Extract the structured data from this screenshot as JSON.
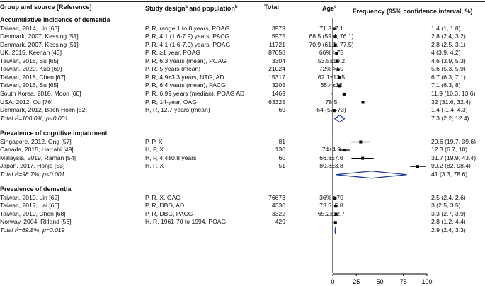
{
  "headers": {
    "group": "Group and source [Reference]",
    "design": "Study design",
    "design_sup": "a",
    "design_and": " and population",
    "design_sup2": "b",
    "total": "Total",
    "age": "Age",
    "age_sup": "c",
    "freq": "Frequency (95% confidence interval, %)"
  },
  "chart_data": {
    "type": "forest",
    "xlim": [
      0,
      100
    ],
    "xticks": [
      0,
      25,
      50,
      75,
      100
    ],
    "sections": [
      {
        "title": "Accumulative incidence of dementia",
        "rows": [
          {
            "source": "Taiwan, 2014, Lin [63]",
            "design": "P, R, range 1 to 8 years, POAG",
            "total": "3979",
            "age": "71.3±7.1",
            "est": 1.4,
            "lo": 1,
            "hi": 1.8,
            "label": "1.4 (1, 1.8)"
          },
          {
            "source": "Denmark, 2007, Kessing [51]",
            "design": "P, R, 4.1 (1.6-7.9) years, PACG",
            "total": "5975",
            "age": "68.5 (59.4, 76.1)",
            "est": 2.8,
            "lo": 2.4,
            "hi": 3.2,
            "label": "2.8 (2.4, 3.2)"
          },
          {
            "source": "Denmark, 2007, Kessing [51]",
            "design": "P, R, 4.1 (1.6-7.9) years, POAG",
            "total": "11721",
            "age": "70.9 (61.1, 77.5)",
            "est": 2.8,
            "lo": 2.5,
            "hi": 3.1,
            "label": "2.8 (2.5, 3.1)"
          },
          {
            "source": "UK, 2015, Keenan [43]",
            "design": "P, R, ≥1 year, POAG",
            "total": "87658",
            "age": "66% >75",
            "est": 4,
            "lo": 3.9,
            "hi": 4.2,
            "label": "4 (3.9, 4.2)"
          },
          {
            "source": "Taiwan, 2016, Su [65]",
            "design": "P, R, 6.3 years (mean), POAG",
            "total": "3304",
            "age": "53.5±19.2",
            "est": 4.6,
            "lo": 3.9,
            "hi": 5.3,
            "label": "4.6 (3.9, 5.3)"
          },
          {
            "source": "Taiwan, 2020, Kuo [69]",
            "design": "P, R, 5 years (mean)",
            "total": "21024",
            "age": "72% >50",
            "est": 5.6,
            "lo": 5.3,
            "hi": 5.9,
            "label": "5.6 (5.3, 5.9)"
          },
          {
            "source": "Taiwan, 2018, Chen [67]",
            "design": "P, R, 4.9±3.3 years, NTG, AD",
            "total": "15317",
            "age": "62.1±12.5",
            "est": 6.7,
            "lo": 6.3,
            "hi": 7.1,
            "label": "6.7 (6.3, 7.1)"
          },
          {
            "source": "Taiwan, 2016, Su [65]",
            "design": "P, R, 6.4 years (mean), PACG",
            "total": "3205",
            "age": "65.4±12",
            "est": 7.1,
            "lo": 6.3,
            "hi": 8,
            "label": "7.1 (6.3, 8)"
          },
          {
            "source": "South Korea, 2018, Moon [60]",
            "design": "P, R, 6.99 years (median), POAG AD",
            "total": "1469",
            "age": "-",
            "est": 11.9,
            "lo": 10.3,
            "hi": 13.6,
            "label": "11.9 (10.3, 13.6)"
          },
          {
            "source": "USA, 2012, Ou [76]",
            "design": "P, R, 14-year, OAG",
            "total": "63325",
            "age": "78.5",
            "est": 32,
            "lo": 31.6,
            "hi": 32.4,
            "label": "32 (31.6, 32.4)"
          },
          {
            "source": "Denmark, 2012, Bach-Holm [52]",
            "design": "H, R, 12.7 years (mean)",
            "total": "69",
            "age": "64 (57, 73)",
            "est": 1.4,
            "lo": -1.4,
            "hi": 4.3,
            "label": "1.4 (-1.4, 4.3)"
          }
        ],
        "total": {
          "text": "Total I²=100.0%, p<0.001",
          "est": 7.3,
          "lo": 2.2,
          "hi": 12.4,
          "label": "7.3 (2.2, 12.4)"
        }
      },
      {
        "title": "Prevalence of cognitive impairment",
        "rows": [
          {
            "source": "Singapore, 2012, Ong [57]",
            "design": "P, P, X",
            "total": "81",
            "age": "-",
            "est": 29.6,
            "lo": 19.7,
            "hi": 39.6,
            "label": "29.6 (19.7, 39.6)"
          },
          {
            "source": "Canada, 2015, Harrabi [49]",
            "design": "H, P, X",
            "total": "130",
            "age": "74±4.9",
            "est": 12.3,
            "lo": 6.7,
            "hi": 18,
            "label": "12.3 (6.7, 18)"
          },
          {
            "source": "Malaysia, 2019, Raman [54]",
            "design": "H, P, 4.4±0.8 years",
            "total": "60",
            "age": "66.8±7.6",
            "est": 31.7,
            "lo": 19.9,
            "hi": 43.4,
            "label": "31.7 (19.9, 43.4)"
          },
          {
            "source": "Japan, 2017, Honjo [53]",
            "design": "H, P, X",
            "total": "51",
            "age": "80.8±3.8",
            "est": 90.2,
            "lo": 82,
            "hi": 98.4,
            "label": "90.2 (82, 98.4)"
          }
        ],
        "total": {
          "text": "Total I²=98.7%, p<0.001",
          "est": 41,
          "lo": 3.3,
          "hi": 78.6,
          "label": "41 (3.3, 78.6)"
        }
      },
      {
        "title": "Prevalence of dementia",
        "rows": [
          {
            "source": "Taiwan, 2010, Lin [62]",
            "design": "P, R, X, OAG",
            "total": "76673",
            "age": "36% ≥70",
            "est": 2.5,
            "lo": 2.4,
            "hi": 2.6,
            "label": "2.5 (2.4, 2.6)"
          },
          {
            "source": "Taiwan, 2017, Lai [66]",
            "design": "P, R, DBG, AD",
            "total": "4330",
            "age": "73.5±5.8",
            "est": 3,
            "lo": 2.5,
            "hi": 3.5,
            "label": "3 (2.5, 3.5)"
          },
          {
            "source": "Taiwan, 2019, Chen [68]",
            "design": "P, R, DBG, PACG",
            "total": "3322",
            "age": "65.2±12.7",
            "est": 3.3,
            "lo": 2.7,
            "hi": 3.9,
            "label": "3.3 (2.7, 3.9)"
          },
          {
            "source": "Norway, 2004, Ritland [56]",
            "design": "H, R, 1961-70 to 1994, POAG",
            "total": "429",
            "age": "-",
            "est": 2.8,
            "lo": 1.2,
            "hi": 4.4,
            "label": "2.8 (1.2, 4.4)"
          }
        ],
        "total": {
          "text": "Total I²=69.8%, p=0.019",
          "est": 2.9,
          "lo": 2.4,
          "hi": 3.3,
          "label": "2.9 (2.4, 3.3)"
        }
      }
    ]
  }
}
